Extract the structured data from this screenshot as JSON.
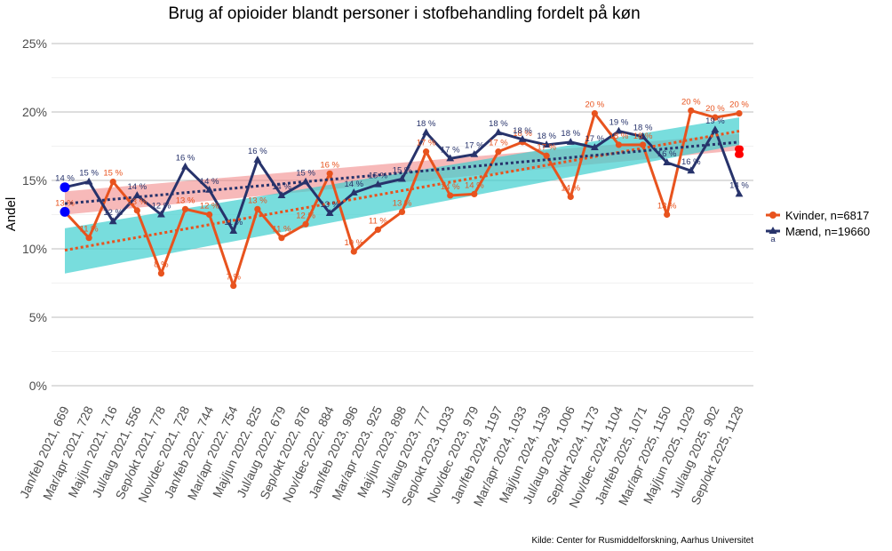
{
  "chart_data": {
    "type": "line",
    "title": "Brug af opioider blandt personer i stofbehandling fordelt på køn",
    "xlabel": "",
    "ylabel": "Andel",
    "ylim": [
      0,
      25
    ],
    "yticks": [
      "0%",
      "5%",
      "10%",
      "15%",
      "20%",
      "25%"
    ],
    "ytick_values": [
      0,
      5,
      10,
      15,
      20,
      25
    ],
    "categories": [
      "Jan/feb 2021, 669",
      "Mar/apr 2021, 728",
      "Maj/jun 2021, 716",
      "Jul/aug 2021, 556",
      "Sep/okt 2021, 778",
      "Nov/dec 2021, 728",
      "Jan/feb 2022, 744",
      "Mar/apr 2022, 754",
      "Maj/jun 2022, 825",
      "Jul/aug 2022, 679",
      "Sep/okt 2022, 876",
      "Nov/dec 2022, 884",
      "Jan/feb 2023, 996",
      "Mar/apr 2023, 925",
      "Maj/jun 2023, 898",
      "Jul/aug 2023, 777",
      "Sep/okt 2023, 1033",
      "Nov/dec 2023, 979",
      "Jan/feb 2024, 1197",
      "Mar/apr 2024, 1033",
      "Maj/jun 2024, 1139",
      "Jul/aug 2024, 1006",
      "Sep/okt 2024, 1173",
      "Nov/dec 2024, 1104",
      "Jan/feb 2025, 1071",
      "Mar/apr 2025, 1150",
      "Maj/jun 2025, 1029",
      "Jul/aug 2025, 902",
      "Sep/okt 2025, 1128"
    ],
    "series": [
      {
        "name": "Kvinder, n=6817",
        "color": "#e8531e",
        "values": [
          12.7,
          10.8,
          14.9,
          12.8,
          8.2,
          12.9,
          12.5,
          7.3,
          12.9,
          10.8,
          11.8,
          15.5,
          9.8,
          11.4,
          12.7,
          17.1,
          13.9,
          14.0,
          17.1,
          17.8,
          16.8,
          13.8,
          19.9,
          17.6,
          17.6,
          12.5,
          20.1,
          19.6,
          19.9
        ],
        "labels": [
          "13 %",
          "11 %",
          "15 %",
          "13 %",
          "8 %",
          "13 %",
          "12 %",
          "7 %",
          "13 %",
          "11 %",
          "12 %",
          "16 %",
          "10 %",
          "11 %",
          "13 %",
          "17 %",
          "14 %",
          "14 %",
          "17 %",
          "18 %",
          "17 %",
          "14 %",
          "20 %",
          "18 %",
          "18 %",
          "13 %",
          "20 %",
          "20 %",
          "20 %"
        ],
        "trend": [
          9.9,
          18.6
        ],
        "band_lower": [
          8.2,
          17.6
        ],
        "band_upper": [
          11.5,
          19.6
        ],
        "band_color": "#3fcfcf"
      },
      {
        "name": "Mænd, n=19660",
        "color": "#27336b",
        "values": [
          14.5,
          14.9,
          12.0,
          13.9,
          12.5,
          16.0,
          14.3,
          11.3,
          16.5,
          13.9,
          14.9,
          12.6,
          14.1,
          14.7,
          15.1,
          18.5,
          16.6,
          16.9,
          18.5,
          18.0,
          17.6,
          17.8,
          17.4,
          18.6,
          18.2,
          16.3,
          15.7,
          18.7,
          14.0
        ],
        "labels": [
          "14 %",
          "15 %",
          "12 %",
          "14 %",
          "12 %",
          "16 %",
          "14 %",
          "11 %",
          "16 %",
          "14 %",
          "15 %",
          "13 %",
          "14 %",
          "15 %",
          "15 %",
          "18 %",
          "17 %",
          "17 %",
          "18 %",
          "18 %",
          "18 %",
          "18 %",
          "17 %",
          "19 %",
          "18 %",
          "16 %",
          "16 %",
          "19 %",
          "14 %"
        ],
        "trend": [
          13.3,
          17.8
        ],
        "band_lower": [
          12.5,
          17.2
        ],
        "band_upper": [
          14.2,
          18.4
        ],
        "band_color": "#f08080"
      }
    ],
    "legend": {
      "position": "right",
      "items": [
        "Kvinder, n=6817",
        "Mænd, n=19660"
      ],
      "note": "a"
    },
    "source": "Kilde: Center for Rusmiddelforskning, Aarhus Universitet",
    "colors": {
      "women": "#e8531e",
      "men": "#27336b",
      "grid": "#bdbdbd",
      "marker_start": "#0000ff",
      "marker_end": "#ff0000"
    }
  }
}
